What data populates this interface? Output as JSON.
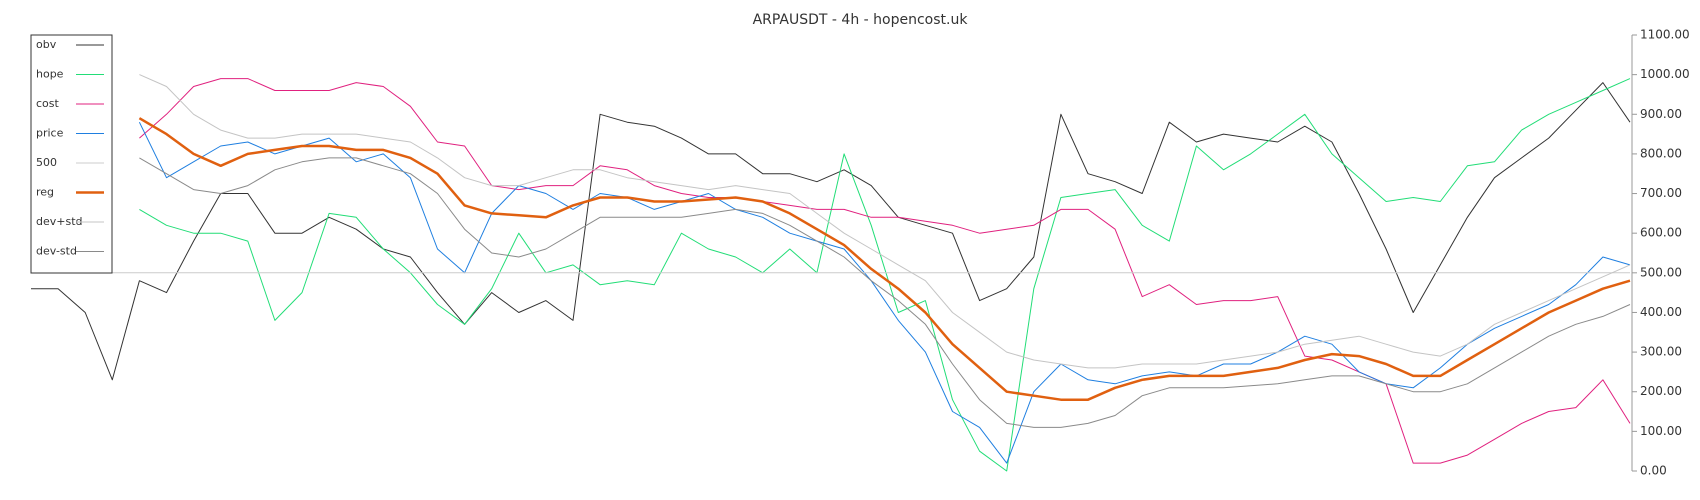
{
  "chart_data": {
    "type": "line",
    "title": "ARPAUSDT - 4h - hopencost.uk",
    "ylim": [
      0,
      1100
    ],
    "yticks": [
      {
        "value": 0,
        "label": "0.00"
      },
      {
        "value": 100,
        "label": "100.00"
      },
      {
        "value": 200,
        "label": "200.00"
      },
      {
        "value": 300,
        "label": "300.00"
      },
      {
        "value": 400,
        "label": "400.00"
      },
      {
        "value": 500,
        "label": "500.00"
      },
      {
        "value": 600,
        "label": "600.00"
      },
      {
        "value": 700,
        "label": "700.00"
      },
      {
        "value": 800,
        "label": "800.00"
      },
      {
        "value": 900,
        "label": "900.00"
      },
      {
        "value": 1000,
        "label": "1000.00"
      },
      {
        "value": 1100,
        "label": "1100.00"
      }
    ],
    "legend": "upper left",
    "series": [
      {
        "name": "obv",
        "color": "#333333",
        "width": 1,
        "values": [
          460,
          460,
          400,
          230,
          480,
          450,
          580,
          700,
          700,
          600,
          600,
          640,
          610,
          560,
          540,
          450,
          370,
          450,
          400,
          430,
          380,
          900,
          880,
          870,
          840,
          800,
          800,
          750,
          750,
          730,
          760,
          720,
          640,
          620,
          600,
          430,
          460,
          540,
          900,
          750,
          730,
          700,
          880,
          830,
          850,
          840,
          830,
          870,
          830,
          700,
          560,
          400,
          520,
          640,
          740,
          790,
          840,
          910,
          980,
          880
        ]
      },
      {
        "name": "hope",
        "color": "#22dd77",
        "width": 1,
        "values": [
          null,
          null,
          null,
          null,
          660,
          620,
          600,
          600,
          580,
          380,
          450,
          650,
          640,
          560,
          500,
          420,
          370,
          460,
          600,
          500,
          520,
          470,
          480,
          470,
          600,
          560,
          540,
          500,
          560,
          500,
          800,
          620,
          400,
          430,
          180,
          50,
          0,
          460,
          690,
          700,
          710,
          620,
          580,
          820,
          760,
          800,
          850,
          900,
          800,
          740,
          680,
          690,
          680,
          770,
          780,
          860,
          900,
          930,
          960,
          990
        ]
      },
      {
        "name": "cost",
        "color": "#e0217f",
        "width": 1,
        "values": [
          null,
          null,
          null,
          null,
          840,
          900,
          970,
          990,
          990,
          960,
          960,
          960,
          980,
          970,
          920,
          830,
          820,
          720,
          710,
          720,
          720,
          770,
          760,
          720,
          700,
          690,
          690,
          680,
          670,
          660,
          660,
          640,
          640,
          630,
          620,
          600,
          610,
          620,
          660,
          660,
          610,
          440,
          470,
          420,
          430,
          430,
          440,
          290,
          280,
          250,
          220,
          20,
          20,
          40,
          80,
          120,
          150,
          160,
          230,
          120
        ]
      },
      {
        "name": "price",
        "color": "#1f7fe0",
        "width": 1,
        "values": [
          null,
          null,
          null,
          null,
          880,
          740,
          780,
          820,
          830,
          800,
          820,
          840,
          780,
          800,
          740,
          560,
          500,
          650,
          720,
          700,
          660,
          700,
          690,
          660,
          680,
          700,
          660,
          640,
          600,
          580,
          560,
          480,
          380,
          300,
          150,
          110,
          20,
          200,
          270,
          230,
          220,
          240,
          250,
          240,
          270,
          270,
          300,
          340,
          320,
          250,
          220,
          210,
          260,
          320,
          360,
          390,
          420,
          470,
          540,
          520
        ]
      },
      {
        "name": "500",
        "color": "#cccccc",
        "width": 1,
        "values": [
          500,
          500,
          500,
          500,
          500,
          500,
          500,
          500,
          500,
          500,
          500,
          500,
          500,
          500,
          500,
          500,
          500,
          500,
          500,
          500,
          500,
          500,
          500,
          500,
          500,
          500,
          500,
          500,
          500,
          500,
          500,
          500,
          500,
          500,
          500,
          500,
          500,
          500,
          500,
          500,
          500,
          500,
          500,
          500,
          500,
          500,
          500,
          500,
          500,
          500,
          500,
          500,
          500,
          500,
          500,
          500,
          500,
          500,
          500,
          500
        ]
      },
      {
        "name": "reg",
        "color": "#e06010",
        "width": 2.5,
        "values": [
          null,
          null,
          null,
          null,
          890,
          850,
          800,
          770,
          800,
          810,
          820,
          820,
          810,
          810,
          790,
          750,
          670,
          650,
          645,
          640,
          670,
          690,
          690,
          680,
          680,
          685,
          690,
          680,
          650,
          610,
          570,
          510,
          460,
          400,
          320,
          260,
          200,
          190,
          180,
          180,
          210,
          230,
          240,
          240,
          240,
          250,
          260,
          280,
          295,
          290,
          270,
          240,
          240,
          280,
          320,
          360,
          400,
          430,
          460,
          480
        ]
      },
      {
        "name": "dev+std",
        "color": "#c4c4c4",
        "width": 1,
        "values": [
          null,
          null,
          null,
          null,
          1000,
          970,
          900,
          860,
          840,
          840,
          850,
          850,
          850,
          840,
          830,
          790,
          740,
          720,
          720,
          740,
          760,
          760,
          740,
          730,
          720,
          710,
          720,
          710,
          700,
          650,
          600,
          560,
          520,
          480,
          400,
          350,
          300,
          280,
          270,
          260,
          260,
          270,
          270,
          270,
          280,
          290,
          300,
          320,
          330,
          340,
          320,
          300,
          290,
          320,
          370,
          400,
          430,
          460,
          490,
          520
        ]
      },
      {
        "name": "dev-std",
        "color": "#8a8a8a",
        "width": 1,
        "values": [
          null,
          null,
          null,
          null,
          790,
          750,
          710,
          700,
          720,
          760,
          780,
          790,
          790,
          770,
          750,
          700,
          610,
          550,
          540,
          560,
          600,
          640,
          640,
          640,
          640,
          650,
          660,
          650,
          620,
          580,
          540,
          480,
          430,
          370,
          270,
          180,
          120,
          110,
          110,
          120,
          140,
          190,
          210,
          210,
          210,
          215,
          220,
          230,
          240,
          240,
          220,
          200,
          200,
          220,
          260,
          300,
          340,
          370,
          390,
          420
        ]
      }
    ]
  }
}
